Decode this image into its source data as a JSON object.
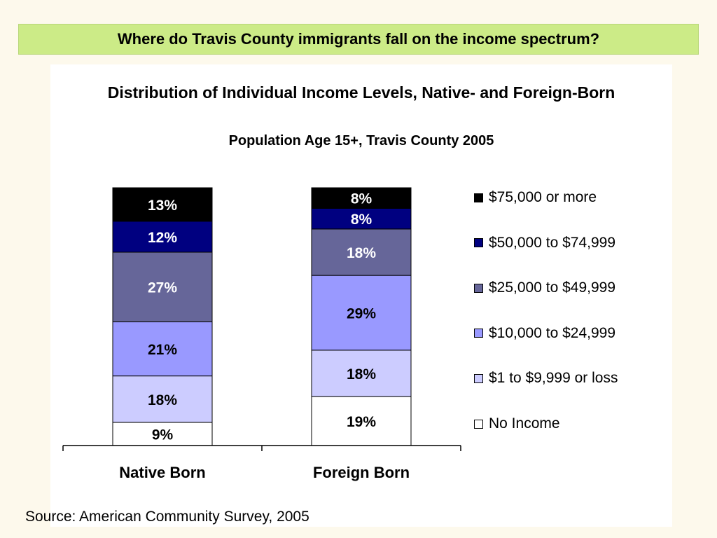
{
  "header": {
    "title": "Where do Travis County immigrants fall on the income spectrum?"
  },
  "footer": {
    "source": "Source: American Community Survey, 2005"
  },
  "chart_data": {
    "type": "bar",
    "stacked": true,
    "title": "Distribution of Individual Income Levels, Native- and Foreign-Born",
    "subtitle": "Population Age 15+, Travis County 2005",
    "xlabel": "",
    "ylabel": "",
    "ylim": [
      0,
      100
    ],
    "grid": false,
    "legend_position": "right",
    "categories": [
      "Native Born",
      "Foreign Born"
    ],
    "series": [
      {
        "name": "No Income",
        "values": [
          9,
          19
        ],
        "color": "#ffffff",
        "label_color": "#000000",
        "labels": [
          "9%",
          "19%"
        ]
      },
      {
        "name": "$1 to $9,999 or loss",
        "values": [
          18,
          18
        ],
        "color": "#ccccff",
        "label_color": "#000000",
        "labels": [
          "18%",
          "18%"
        ]
      },
      {
        "name": "$10,000 to $24,999",
        "values": [
          21,
          29
        ],
        "color": "#9999ff",
        "label_color": "#000000",
        "labels": [
          "21%",
          "29%"
        ]
      },
      {
        "name": "$25,000 to $49,999",
        "values": [
          27,
          18
        ],
        "color": "#666699",
        "label_color": "#ffffff",
        "labels": [
          "27%",
          "18%"
        ]
      },
      {
        "name": "$50,000 to $74,999",
        "values": [
          12,
          8
        ],
        "color": "#000080",
        "label_color": "#ffffff",
        "labels": [
          "12%",
          "8%"
        ]
      },
      {
        "name": "$75,000 or more",
        "values": [
          13,
          8
        ],
        "color": "#000000",
        "label_color": "#ffffff",
        "labels": [
          "13%",
          "8%"
        ]
      }
    ]
  }
}
